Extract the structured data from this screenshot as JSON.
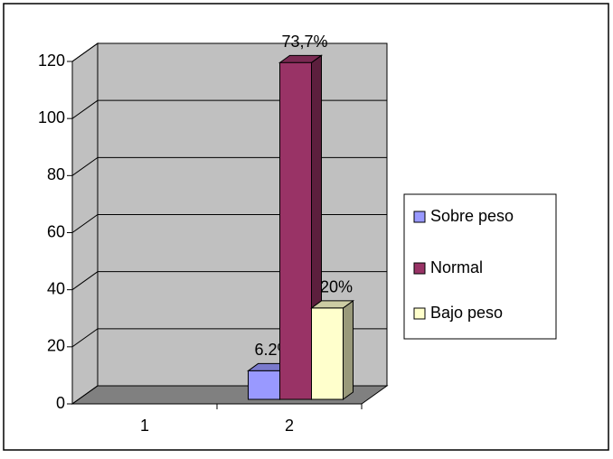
{
  "chart_data": {
    "type": "bar3d",
    "categories": [
      "1",
      "2"
    ],
    "series": [
      {
        "name": "Sobre peso",
        "color": "#9999ff",
        "values": [
          null,
          10
        ]
      },
      {
        "name": "Normal",
        "color": "#993366",
        "values": [
          null,
          118
        ]
      },
      {
        "name": "Bajo peso",
        "color": "#ffffcc",
        "values": [
          null,
          32
        ]
      }
    ],
    "annotations": [
      "6.2%",
      "73,7%",
      "20%"
    ],
    "ylim": [
      0,
      120
    ],
    "yticks": [
      0,
      20,
      40,
      60,
      80,
      100,
      120
    ],
    "grid": true,
    "legend": "right"
  }
}
